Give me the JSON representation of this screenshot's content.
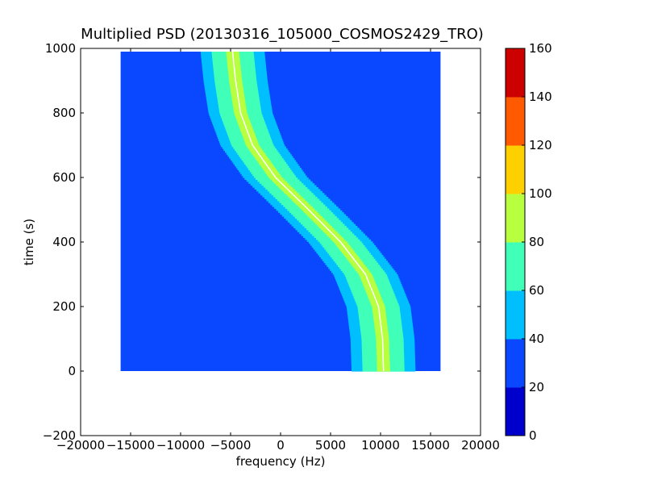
{
  "chart_data": {
    "type": "heatmap",
    "title": "Multiplied PSD (20130316_105000_COSMOS2429_TRO)",
    "xlabel": "frequency (Hz)",
    "ylabel": "time (s)",
    "xlim": [
      -20000,
      20000
    ],
    "ylim": [
      -200,
      1000
    ],
    "x_ticks": [
      -20000,
      -15000,
      -10000,
      -5000,
      0,
      5000,
      10000,
      15000,
      20000
    ],
    "x_tick_labels": [
      "−20000",
      "−15000",
      "−10000",
      "−5000",
      "0",
      "5000",
      "10000",
      "15000",
      "20000"
    ],
    "y_ticks": [
      -200,
      0,
      200,
      400,
      600,
      800,
      1000
    ],
    "y_tick_labels": [
      "−200",
      "0",
      "200",
      "400",
      "600",
      "800",
      "1000"
    ],
    "data_extent": {
      "x": [
        -16000,
        16000
      ],
      "y": [
        0,
        990
      ]
    },
    "background_level": 30,
    "trace": {
      "description_points": [
        {
          "t": 990,
          "f": -4800
        },
        {
          "t": 900,
          "f": -4500
        },
        {
          "t": 800,
          "f": -4000
        },
        {
          "t": 700,
          "f": -2800
        },
        {
          "t": 600,
          "f": -500
        },
        {
          "t": 500,
          "f": 2800
        },
        {
          "t": 400,
          "f": 6000
        },
        {
          "t": 300,
          "f": 8500
        },
        {
          "t": 200,
          "f": 9800
        },
        {
          "t": 100,
          "f": 10200
        },
        {
          "t": 0,
          "f": 10300
        }
      ]
    },
    "colorbar": {
      "levels": [
        0,
        20,
        40,
        60,
        80,
        100,
        120,
        140,
        160
      ],
      "tick_labels": [
        "0",
        "20",
        "40",
        "60",
        "80",
        "100",
        "120",
        "140",
        "160"
      ],
      "colors": [
        "#0000cd",
        "#0a48ff",
        "#00bfff",
        "#40ffb8",
        "#b8ff40",
        "#ffd000",
        "#ff5a00",
        "#cd0000"
      ]
    }
  }
}
